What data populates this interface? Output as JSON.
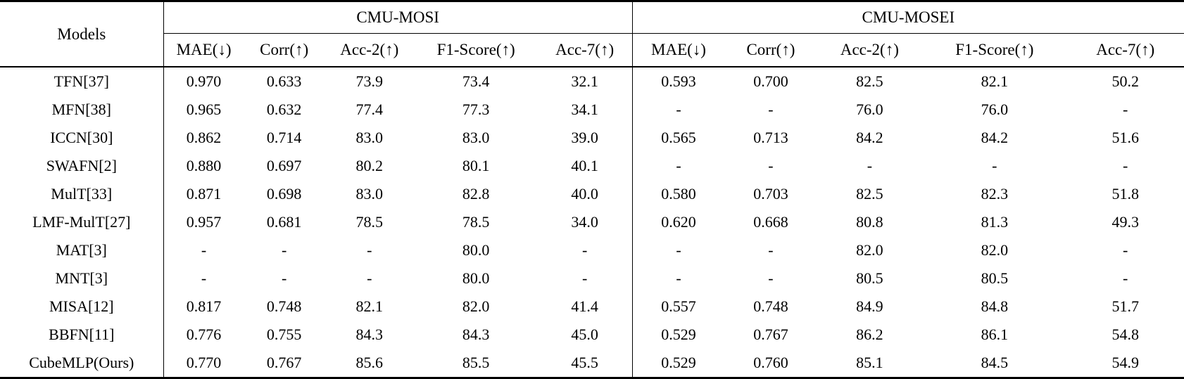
{
  "table": {
    "models_header": "Models",
    "group1": "CMU-MOSI",
    "group2": "CMU-MOSEI",
    "metrics": [
      "MAE(↓)",
      "Corr(↑)",
      "Acc-2(↑)",
      "F1-Score(↑)",
      "Acc-7(↑)"
    ],
    "rows": [
      {
        "model": "TFN[37]",
        "cells": [
          "0.970",
          "0.633",
          "73.9",
          "73.4",
          "32.1",
          "0.593",
          "0.700",
          "82.5",
          "82.1",
          "50.2"
        ],
        "bold": []
      },
      {
        "model": "MFN[38]",
        "cells": [
          "0.965",
          "0.632",
          "77.4",
          "77.3",
          "34.1",
          "-",
          "-",
          "76.0",
          "76.0",
          "-"
        ],
        "bold": []
      },
      {
        "model": "ICCN[30]",
        "cells": [
          "0.862",
          "0.714",
          "83.0",
          "83.0",
          "39.0",
          "0.565",
          "0.713",
          "84.2",
          "84.2",
          "51.6"
        ],
        "bold": []
      },
      {
        "model": "SWAFN[2]",
        "cells": [
          "0.880",
          "0.697",
          "80.2",
          "80.1",
          "40.1",
          "-",
          "-",
          "-",
          "-",
          "-"
        ],
        "bold": []
      },
      {
        "model": "MulT[33]",
        "cells": [
          "0.871",
          "0.698",
          "83.0",
          "82.8",
          "40.0",
          "0.580",
          "0.703",
          "82.5",
          "82.3",
          "51.8"
        ],
        "bold": []
      },
      {
        "model": "LMF-MulT[27]",
        "cells": [
          "0.957",
          "0.681",
          "78.5",
          "78.5",
          "34.0",
          "0.620",
          "0.668",
          "80.8",
          "81.3",
          "49.3"
        ],
        "bold": []
      },
      {
        "model": "MAT[3]",
        "cells": [
          "-",
          "-",
          "-",
          "80.0",
          "-",
          "-",
          "-",
          "82.0",
          "82.0",
          "-"
        ],
        "bold": []
      },
      {
        "model": "MNT[3]",
        "cells": [
          "-",
          "-",
          "-",
          "80.0",
          "-",
          "-",
          "-",
          "80.5",
          "80.5",
          "-"
        ],
        "bold": []
      },
      {
        "model": "MISA[12]",
        "cells": [
          "0.817",
          "0.748",
          "82.1",
          "82.0",
          "41.4",
          "0.557",
          "0.748",
          "84.9",
          "84.8",
          "51.7"
        ],
        "bold": []
      },
      {
        "model": "BBFN[11]",
        "cells": [
          "0.776",
          "0.755",
          "84.3",
          "84.3",
          "45.0",
          "0.529",
          "0.767",
          "86.2",
          "86.1",
          "54.8"
        ],
        "bold": [
          5,
          6,
          7,
          8
        ]
      },
      {
        "model": "CubeMLP(Ours)",
        "cells": [
          "0.770",
          "0.767",
          "85.6",
          "85.5",
          "45.5",
          "0.529",
          "0.760",
          "85.1",
          "84.5",
          "54.9"
        ],
        "bold": [
          0,
          1,
          2,
          3,
          4,
          5,
          9
        ]
      }
    ]
  }
}
